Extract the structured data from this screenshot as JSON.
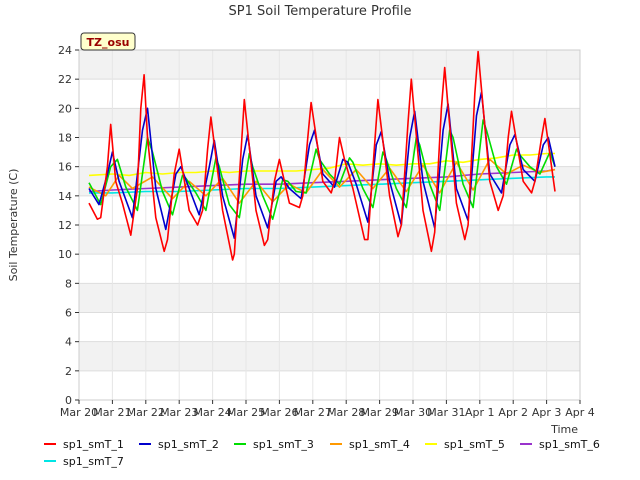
{
  "chart_data": {
    "type": "line",
    "title": "SP1 Soil Temperature Profile",
    "xlabel": "Time",
    "ylabel": "Soil Temperature (C)",
    "ylim": [
      0,
      24
    ],
    "yticks": [
      0,
      2,
      4,
      6,
      8,
      10,
      12,
      14,
      16,
      18,
      20,
      22,
      24
    ],
    "xlim": [
      0,
      15
    ],
    "xticks": [
      {
        "v": 0,
        "label": "Mar 20"
      },
      {
        "v": 1,
        "label": "Mar 21"
      },
      {
        "v": 2,
        "label": "Mar 22"
      },
      {
        "v": 3,
        "label": "Mar 23"
      },
      {
        "v": 4,
        "label": "Mar 24"
      },
      {
        "v": 5,
        "label": "Mar 25"
      },
      {
        "v": 6,
        "label": "Mar 26"
      },
      {
        "v": 7,
        "label": "Mar 27"
      },
      {
        "v": 8,
        "label": "Mar 28"
      },
      {
        "v": 9,
        "label": "Mar 29"
      },
      {
        "v": 10,
        "label": "Mar 30"
      },
      {
        "v": 11,
        "label": "Mar 31"
      },
      {
        "v": 12,
        "label": "Apr 1"
      },
      {
        "v": 13,
        "label": "Apr 2"
      },
      {
        "v": 14,
        "label": "Apr 3"
      },
      {
        "v": 15,
        "label": "Apr 4"
      }
    ],
    "grid": true,
    "legend": "bottom",
    "badge": "TZ_osu",
    "series": [
      {
        "name": "sp1_smT_1",
        "color": "#ff0000",
        "x": [
          0.3,
          0.55,
          0.65,
          0.85,
          0.95,
          1.1,
          1.3,
          1.55,
          1.75,
          1.85,
          1.95,
          2.05,
          2.3,
          2.55,
          2.65,
          2.85,
          3.0,
          3.3,
          3.55,
          3.7,
          3.85,
          3.95,
          4.3,
          4.6,
          4.65,
          4.85,
          4.95,
          5.3,
          5.55,
          5.65,
          5.85,
          6.0,
          6.3,
          6.6,
          6.7,
          6.85,
          6.95,
          7.3,
          7.55,
          7.65,
          7.8,
          7.95,
          8.2,
          8.55,
          8.65,
          8.85,
          8.95,
          9.3,
          9.55,
          9.65,
          9.85,
          9.95,
          10.3,
          10.55,
          10.65,
          10.85,
          10.95,
          11.3,
          11.55,
          11.65,
          11.85,
          11.95,
          12.3,
          12.55,
          12.7,
          12.85,
          12.95,
          13.3,
          13.55,
          13.65,
          13.85,
          13.95,
          14.25
        ],
        "y": [
          13.5,
          12.4,
          12.5,
          16.0,
          18.9,
          15.0,
          13.5,
          11.3,
          14.5,
          20.0,
          22.3,
          18.0,
          12.5,
          10.2,
          11.0,
          15.5,
          17.2,
          13.0,
          12.0,
          13.0,
          17.2,
          19.4,
          13.0,
          9.6,
          10.0,
          17.0,
          20.6,
          13.0,
          10.6,
          11.0,
          15.0,
          16.5,
          13.5,
          13.2,
          14.0,
          18.0,
          20.4,
          15.0,
          14.2,
          15.0,
          18.0,
          16.5,
          14.5,
          11.0,
          11.0,
          17.5,
          20.6,
          14.0,
          11.2,
          12.0,
          19.0,
          22.0,
          13.0,
          10.2,
          11.5,
          20.0,
          22.8,
          13.5,
          11.0,
          12.0,
          21.0,
          23.9,
          15.0,
          13.0,
          14.0,
          18.0,
          19.8,
          15.0,
          14.2,
          15.0,
          18.0,
          19.3,
          14.3
        ]
      },
      {
        "name": "sp1_smT_2",
        "color": "#0000cc",
        "x": [
          0.3,
          0.6,
          0.85,
          1.0,
          1.2,
          1.6,
          1.9,
          2.05,
          2.3,
          2.6,
          2.9,
          3.05,
          3.3,
          3.6,
          3.9,
          4.05,
          4.3,
          4.65,
          4.9,
          5.05,
          5.3,
          5.65,
          5.9,
          6.05,
          6.3,
          6.65,
          6.9,
          7.05,
          7.3,
          7.65,
          7.9,
          8.05,
          8.3,
          8.65,
          8.9,
          9.05,
          9.3,
          9.65,
          9.9,
          10.05,
          10.3,
          10.65,
          10.9,
          11.05,
          11.3,
          11.65,
          11.9,
          12.05,
          12.3,
          12.65,
          12.9,
          13.05,
          13.3,
          13.65,
          13.9,
          14.05,
          14.25
        ],
        "y": [
          14.5,
          13.4,
          15.5,
          17.0,
          15.0,
          12.5,
          18.5,
          20.0,
          14.5,
          11.7,
          15.5,
          16.0,
          14.5,
          12.7,
          16.0,
          17.8,
          14.0,
          11.1,
          16.5,
          18.2,
          14.0,
          11.8,
          15.0,
          15.3,
          14.5,
          13.8,
          17.5,
          18.5,
          15.5,
          14.6,
          16.5,
          16.3,
          14.8,
          12.2,
          17.5,
          18.4,
          15.0,
          12.0,
          18.0,
          19.8,
          15.0,
          11.8,
          18.5,
          20.3,
          14.5,
          12.3,
          19.5,
          21.1,
          15.5,
          14.2,
          17.5,
          18.2,
          15.8,
          15.0,
          17.5,
          18.0,
          16.0
        ]
      },
      {
        "name": "sp1_smT_3",
        "color": "#00dd00",
        "x": [
          0.3,
          0.65,
          0.95,
          1.15,
          1.4,
          1.75,
          2.05,
          2.2,
          2.5,
          2.8,
          3.1,
          3.2,
          3.5,
          3.8,
          4.1,
          4.2,
          4.5,
          4.8,
          5.1,
          5.2,
          5.5,
          5.8,
          6.1,
          6.25,
          6.5,
          6.8,
          7.1,
          7.2,
          7.5,
          7.8,
          8.1,
          8.2,
          8.5,
          8.8,
          9.1,
          9.2,
          9.5,
          9.8,
          10.1,
          10.2,
          10.5,
          10.8,
          11.1,
          11.2,
          11.5,
          11.8,
          12.1,
          12.2,
          12.5,
          12.8,
          13.1,
          13.2,
          13.5,
          13.8,
          14.1,
          14.25
        ],
        "y": [
          14.9,
          13.4,
          16.0,
          16.5,
          14.6,
          13.0,
          18.0,
          17.0,
          14.3,
          12.7,
          15.4,
          15.2,
          14.2,
          13.0,
          16.6,
          16.0,
          13.4,
          12.5,
          16.9,
          16.0,
          14.0,
          12.4,
          15.1,
          15.0,
          14.3,
          14.2,
          17.2,
          16.5,
          15.5,
          14.8,
          16.6,
          16.3,
          14.5,
          13.2,
          17.0,
          16.5,
          14.5,
          13.2,
          18.0,
          17.5,
          14.8,
          13.0,
          18.5,
          18.0,
          14.8,
          13.2,
          19.2,
          18.5,
          16.0,
          14.8,
          17.2,
          16.8,
          16.0,
          15.5,
          17.0,
          16.0
        ]
      },
      {
        "name": "sp1_smT_4",
        "color": "#ff9900",
        "x": [
          0.3,
          0.8,
          1.2,
          1.6,
          2.2,
          2.8,
          3.3,
          3.8,
          4.3,
          4.8,
          5.3,
          5.8,
          6.3,
          6.8,
          7.3,
          7.8,
          8.3,
          8.8,
          9.3,
          9.8,
          10.3,
          10.8,
          11.3,
          11.8,
          12.3,
          12.8,
          13.3,
          13.8,
          14.25
        ],
        "y": [
          14.6,
          14.0,
          15.4,
          14.5,
          15.3,
          13.8,
          15.0,
          14.0,
          15.2,
          13.5,
          15.0,
          13.6,
          14.8,
          14.2,
          15.8,
          14.6,
          15.8,
          14.5,
          15.9,
          14.3,
          16.1,
          14.2,
          16.3,
          14.4,
          16.5,
          15.5,
          16.1,
          15.6,
          15.8
        ]
      },
      {
        "name": "sp1_smT_5",
        "color": "#ffff00",
        "x": [
          0.3,
          1.0,
          1.5,
          2.0,
          2.5,
          3.0,
          3.5,
          4.0,
          4.5,
          5.0,
          5.5,
          6.0,
          6.5,
          7.0,
          7.5,
          8.0,
          8.5,
          9.0,
          9.5,
          10.0,
          10.5,
          11.0,
          11.5,
          12.0,
          12.5,
          13.0,
          13.5,
          14.0,
          14.25
        ],
        "y": [
          15.4,
          15.5,
          15.4,
          15.6,
          15.5,
          15.6,
          15.6,
          15.7,
          15.6,
          15.7,
          15.7,
          15.7,
          15.7,
          15.8,
          15.9,
          16.2,
          16.1,
          16.2,
          16.1,
          16.2,
          16.2,
          16.4,
          16.3,
          16.5,
          16.6,
          16.8,
          16.8,
          16.9,
          16.9
        ]
      },
      {
        "name": "sp1_smT_6",
        "color": "#9933cc",
        "x": [
          0.3,
          1.0,
          2.0,
          3.0,
          4.0,
          5.0,
          6.0,
          7.0,
          8.0,
          9.0,
          10.0,
          11.0,
          12.0,
          13.0,
          14.0,
          14.25
        ],
        "y": [
          14.3,
          14.4,
          14.5,
          14.6,
          14.7,
          14.8,
          14.8,
          14.9,
          15.0,
          15.1,
          15.2,
          15.3,
          15.5,
          15.6,
          15.7,
          15.8
        ]
      },
      {
        "name": "sp1_smT_7",
        "color": "#00e5e5",
        "x": [
          0.3,
          1.0,
          2.0,
          3.0,
          4.0,
          5.0,
          6.0,
          7.0,
          8.0,
          9.0,
          10.0,
          11.0,
          12.0,
          13.0,
          14.0,
          14.25
        ],
        "y": [
          14.2,
          14.2,
          14.3,
          14.3,
          14.4,
          14.5,
          14.5,
          14.6,
          14.7,
          14.8,
          14.9,
          15.0,
          15.1,
          15.2,
          15.3,
          15.3
        ]
      }
    ]
  }
}
